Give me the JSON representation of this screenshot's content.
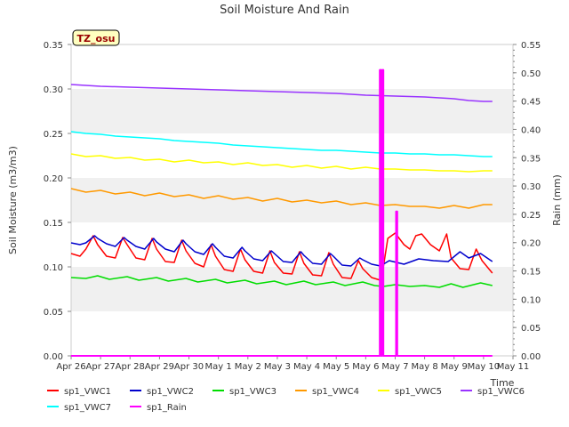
{
  "chart_data": {
    "type": "line",
    "title": "Soil Moisture And Rain",
    "site_label": "TZ_osu",
    "xlabel": "Time",
    "ylabel": "Soil Moisture (m3/m3)",
    "y2label": "Rain (mm)",
    "ylim": [
      0,
      0.35
    ],
    "y2lim": [
      0,
      0.55
    ],
    "xlim": [
      0,
      15
    ],
    "x_ticks": [
      "Apr 26",
      "Apr 27",
      "Apr 28",
      "Apr 29",
      "Apr 30",
      "May 1",
      "May 2",
      "May 3",
      "May 4",
      "May 5",
      "May 6",
      "May 7",
      "May 8",
      "May 9",
      "May 10",
      "May 11"
    ],
    "y_ticks": [
      "0.00",
      "0.05",
      "0.10",
      "0.15",
      "0.20",
      "0.25",
      "0.30",
      "0.35"
    ],
    "y2_ticks": [
      "0.00",
      "0.05",
      "0.10",
      "0.15",
      "0.20",
      "0.25",
      "0.30",
      "0.35",
      "0.40",
      "0.45",
      "0.50",
      "0.55"
    ],
    "grid": "horizontal bands",
    "legend_position": "bottom",
    "series": [
      {
        "name": "sp1_VWC1",
        "color": "#ff0000",
        "axis": "left",
        "x": [
          0,
          0.3,
          0.5,
          0.75,
          0.9,
          1.2,
          1.5,
          1.75,
          1.9,
          2.2,
          2.5,
          2.75,
          2.9,
          3.2,
          3.5,
          3.75,
          3.9,
          4.2,
          4.5,
          4.75,
          4.9,
          5.2,
          5.5,
          5.75,
          5.9,
          6.2,
          6.5,
          6.75,
          6.9,
          7.2,
          7.5,
          7.75,
          7.9,
          8.2,
          8.5,
          8.75,
          8.9,
          9.2,
          9.5,
          9.75,
          9.9,
          10.2,
          10.5,
          10.6,
          10.75,
          11,
          11.3,
          11.5,
          11.7,
          11.9,
          12.2,
          12.5,
          12.75,
          12.9,
          13.2,
          13.5,
          13.75,
          13.95,
          14.3
        ],
        "y": [
          0.115,
          0.112,
          0.12,
          0.135,
          0.125,
          0.112,
          0.11,
          0.133,
          0.125,
          0.11,
          0.108,
          0.132,
          0.12,
          0.106,
          0.105,
          0.13,
          0.118,
          0.104,
          0.1,
          0.125,
          0.112,
          0.097,
          0.095,
          0.12,
          0.108,
          0.095,
          0.093,
          0.118,
          0.105,
          0.093,
          0.092,
          0.117,
          0.104,
          0.091,
          0.09,
          0.116,
          0.103,
          0.088,
          0.087,
          0.107,
          0.098,
          0.088,
          0.085,
          0.1,
          0.132,
          0.138,
          0.125,
          0.12,
          0.135,
          0.137,
          0.125,
          0.118,
          0.137,
          0.11,
          0.098,
          0.097,
          0.12,
          0.107,
          0.093
        ]
      },
      {
        "name": "sp1_VWC2",
        "color": "#0000cc",
        "axis": "left",
        "x": [
          0,
          0.3,
          0.5,
          0.8,
          0.9,
          1.2,
          1.5,
          1.8,
          1.9,
          2.2,
          2.5,
          2.8,
          2.9,
          3.2,
          3.5,
          3.8,
          3.9,
          4.2,
          4.5,
          4.8,
          4.9,
          5.2,
          5.5,
          5.8,
          5.9,
          6.2,
          6.5,
          6.8,
          6.9,
          7.2,
          7.5,
          7.8,
          7.9,
          8.2,
          8.5,
          8.8,
          8.9,
          9.2,
          9.5,
          9.8,
          9.9,
          10.2,
          10.5,
          10.8,
          11.3,
          11.8,
          12.3,
          12.8,
          13.2,
          13.5,
          13.9,
          14.3
        ],
        "y": [
          0.127,
          0.125,
          0.127,
          0.135,
          0.132,
          0.126,
          0.123,
          0.133,
          0.13,
          0.123,
          0.12,
          0.132,
          0.128,
          0.12,
          0.117,
          0.13,
          0.126,
          0.117,
          0.114,
          0.126,
          0.122,
          0.112,
          0.11,
          0.122,
          0.118,
          0.109,
          0.107,
          0.118,
          0.115,
          0.106,
          0.105,
          0.117,
          0.113,
          0.104,
          0.103,
          0.115,
          0.112,
          0.102,
          0.101,
          0.11,
          0.108,
          0.103,
          0.101,
          0.107,
          0.103,
          0.109,
          0.107,
          0.106,
          0.117,
          0.11,
          0.115,
          0.106
        ]
      },
      {
        "name": "sp1_VWC3",
        "color": "#00dd00",
        "axis": "left",
        "x": [
          0,
          0.5,
          0.9,
          1.3,
          1.9,
          2.3,
          2.9,
          3.3,
          3.9,
          4.3,
          4.9,
          5.3,
          5.9,
          6.3,
          6.9,
          7.3,
          7.9,
          8.3,
          8.9,
          9.3,
          9.9,
          10.3,
          10.6,
          11,
          11.5,
          12,
          12.5,
          12.9,
          13.3,
          13.9,
          14.3
        ],
        "y": [
          0.088,
          0.087,
          0.09,
          0.086,
          0.089,
          0.085,
          0.088,
          0.084,
          0.087,
          0.083,
          0.086,
          0.082,
          0.085,
          0.081,
          0.084,
          0.08,
          0.084,
          0.08,
          0.083,
          0.079,
          0.083,
          0.079,
          0.078,
          0.08,
          0.078,
          0.079,
          0.077,
          0.081,
          0.077,
          0.082,
          0.079
        ]
      },
      {
        "name": "sp1_VWC4",
        "color": "#ff9900",
        "axis": "left",
        "x": [
          0,
          0.5,
          1,
          1.5,
          2,
          2.5,
          3,
          3.5,
          4,
          4.5,
          5,
          5.5,
          6,
          6.5,
          7,
          7.5,
          8,
          8.5,
          9,
          9.5,
          10,
          10.5,
          11,
          11.5,
          12,
          12.5,
          13,
          13.5,
          14,
          14.3
        ],
        "y": [
          0.188,
          0.184,
          0.186,
          0.182,
          0.184,
          0.18,
          0.183,
          0.179,
          0.181,
          0.177,
          0.18,
          0.176,
          0.178,
          0.174,
          0.177,
          0.173,
          0.175,
          0.172,
          0.174,
          0.17,
          0.172,
          0.169,
          0.17,
          0.168,
          0.168,
          0.166,
          0.169,
          0.166,
          0.17,
          0.17
        ]
      },
      {
        "name": "sp1_VWC5",
        "color": "#ffff00",
        "axis": "left",
        "x": [
          0,
          0.5,
          1,
          1.5,
          2,
          2.5,
          3,
          3.5,
          4,
          4.5,
          5,
          5.5,
          6,
          6.5,
          7,
          7.5,
          8,
          8.5,
          9,
          9.5,
          10,
          10.5,
          11,
          11.5,
          12,
          12.5,
          13,
          13.5,
          14,
          14.3
        ],
        "y": [
          0.227,
          0.224,
          0.225,
          0.222,
          0.223,
          0.22,
          0.221,
          0.218,
          0.22,
          0.217,
          0.218,
          0.215,
          0.217,
          0.214,
          0.215,
          0.212,
          0.214,
          0.211,
          0.213,
          0.21,
          0.212,
          0.21,
          0.21,
          0.209,
          0.209,
          0.208,
          0.208,
          0.207,
          0.208,
          0.208
        ]
      },
      {
        "name": "sp1_VWC6",
        "color": "#9933ff",
        "axis": "left",
        "x": [
          0,
          1,
          2,
          3,
          4,
          5,
          6,
          7,
          8,
          9,
          10,
          11,
          12,
          13,
          13.5,
          14,
          14.3
        ],
        "y": [
          0.305,
          0.303,
          0.302,
          0.301,
          0.3,
          0.299,
          0.298,
          0.297,
          0.296,
          0.295,
          0.293,
          0.292,
          0.291,
          0.289,
          0.287,
          0.286,
          0.286
        ]
      },
      {
        "name": "sp1_VWC7",
        "color": "#00ffff",
        "axis": "left",
        "x": [
          0,
          0.5,
          1,
          1.5,
          2,
          2.5,
          3,
          3.5,
          4,
          4.5,
          5,
          5.5,
          6,
          6.5,
          7,
          7.5,
          8,
          8.5,
          9,
          9.5,
          10,
          10.5,
          11,
          11.5,
          12,
          12.5,
          13,
          13.5,
          14,
          14.3
        ],
        "y": [
          0.252,
          0.25,
          0.249,
          0.247,
          0.246,
          0.245,
          0.244,
          0.242,
          0.241,
          0.24,
          0.239,
          0.237,
          0.236,
          0.235,
          0.234,
          0.233,
          0.232,
          0.231,
          0.231,
          0.23,
          0.229,
          0.228,
          0.228,
          0.227,
          0.227,
          0.226,
          0.226,
          0.225,
          0.224,
          0.224
        ]
      },
      {
        "name": "sp1_Rain",
        "color": "#ff00ff",
        "axis": "right",
        "x": [
          0,
          10.48,
          10.48,
          10.52,
          10.52,
          10.56,
          10.56,
          10.6,
          10.6,
          11.03,
          11.03,
          11.07,
          11.07,
          14.3
        ],
        "y": [
          0,
          0,
          0.505,
          0.505,
          0,
          0,
          0.505,
          0.505,
          0,
          0,
          0.255,
          0.255,
          0,
          0
        ]
      }
    ]
  }
}
